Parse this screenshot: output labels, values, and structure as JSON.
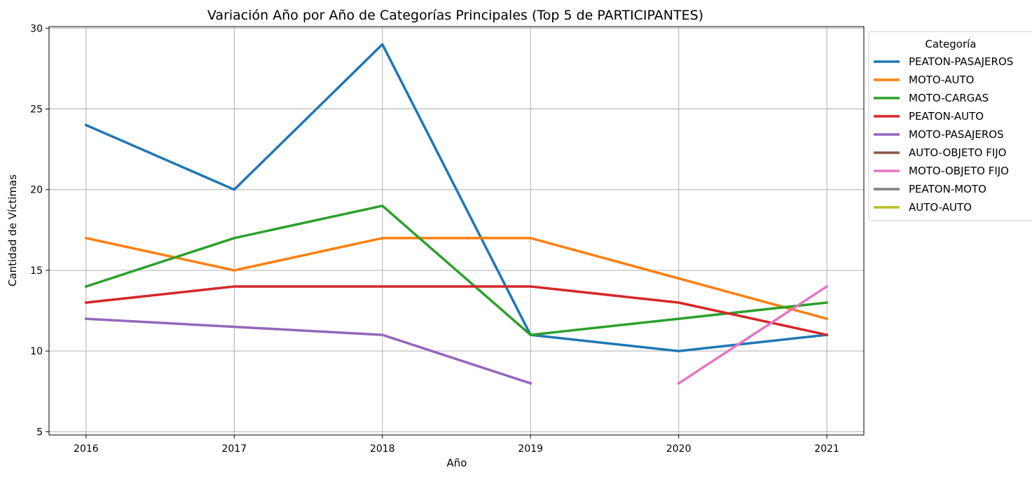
{
  "chart_data": {
    "type": "line",
    "title": "Variación Año por Año de Categorías Principales (Top 5 de PARTICIPANTES)",
    "xlabel": "Año",
    "ylabel": "Cantidad de Víctimas",
    "x": [
      2016,
      2017,
      2018,
      2019,
      2020,
      2021
    ],
    "xlim": [
      2015.75,
      2021.25
    ],
    "ylim": [
      4.8,
      30.1
    ],
    "yticks": [
      5,
      10,
      15,
      20,
      25,
      30
    ],
    "grid": true,
    "legend": {
      "title": "Categoría",
      "placement": "right, outside the plot area (top)"
    },
    "series": [
      {
        "name": "PEATON-PASAJEROS",
        "color": "#1f77b4",
        "values": [
          24,
          20,
          29,
          11,
          10,
          11
        ]
      },
      {
        "name": "MOTO-AUTO",
        "color": "#ff7f0e",
        "values": [
          17,
          15,
          17,
          17,
          14.5,
          12
        ]
      },
      {
        "name": "MOTO-CARGAS",
        "color": "#2ca02c",
        "values": [
          14,
          17,
          19,
          11,
          12,
          13
        ]
      },
      {
        "name": "PEATON-AUTO",
        "color": "#d62728",
        "values": [
          13,
          14,
          14,
          14,
          13,
          11
        ]
      },
      {
        "name": "MOTO-PASAJEROS",
        "color": "#9467bd",
        "values": [
          12,
          11.5,
          11,
          8,
          null,
          null
        ]
      },
      {
        "name": "AUTO-OBJETO FIJO",
        "color": "#8c564b",
        "values": [
          null,
          null,
          null,
          null,
          null,
          null
        ]
      },
      {
        "name": "MOTO-OBJETO FIJO",
        "color": "#e377c2",
        "values": [
          null,
          null,
          null,
          null,
          8,
          14
        ]
      },
      {
        "name": "PEATON-MOTO",
        "color": "#7f7f7f",
        "values": [
          null,
          null,
          null,
          null,
          null,
          null
        ]
      },
      {
        "name": "AUTO-AUTO",
        "color": "#bcbd22",
        "values": [
          null,
          null,
          null,
          null,
          null,
          null
        ]
      }
    ]
  }
}
